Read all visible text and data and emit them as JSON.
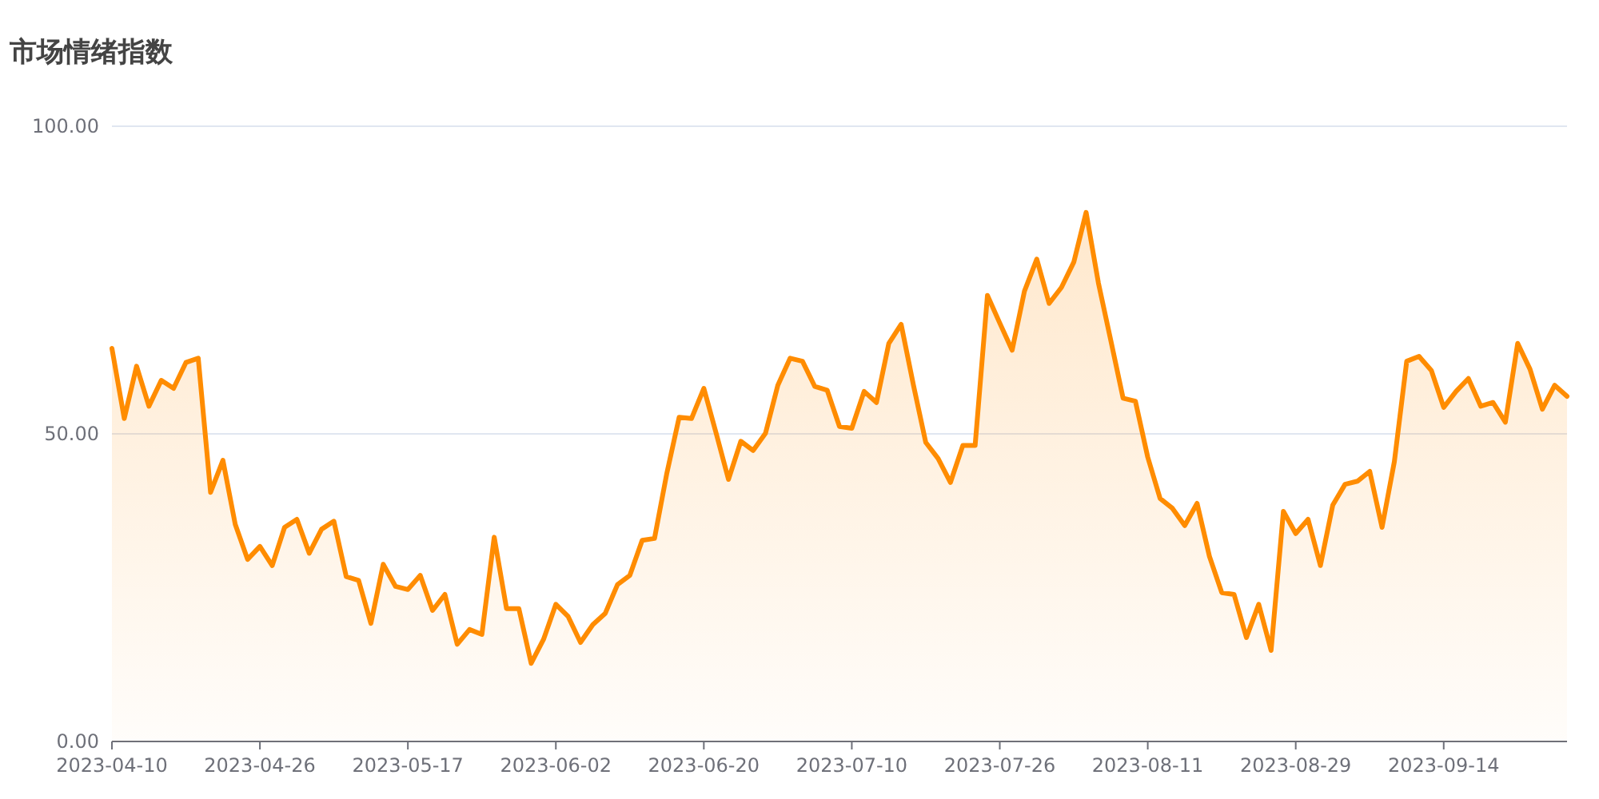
{
  "chart_data": {
    "type": "area",
    "title": "市场情绪指数",
    "categories": [
      "2023-04-10",
      null,
      null,
      null,
      null,
      null,
      null,
      null,
      null,
      null,
      null,
      null,
      "2023-04-26",
      null,
      null,
      null,
      null,
      null,
      null,
      null,
      null,
      null,
      null,
      null,
      "2023-05-17",
      null,
      null,
      null,
      null,
      null,
      null,
      null,
      null,
      null,
      null,
      null,
      "2023-06-02",
      null,
      null,
      null,
      null,
      null,
      null,
      null,
      null,
      null,
      null,
      null,
      "2023-06-20",
      null,
      null,
      null,
      null,
      null,
      null,
      null,
      null,
      null,
      null,
      null,
      "2023-07-10",
      null,
      null,
      null,
      null,
      null,
      null,
      null,
      null,
      null,
      null,
      null,
      "2023-07-26",
      null,
      null,
      null,
      null,
      null,
      null,
      null,
      null,
      null,
      null,
      null,
      "2023-08-11",
      null,
      null,
      null,
      null,
      null,
      null,
      null,
      null,
      null,
      null,
      null,
      "2023-08-29",
      null,
      null,
      null,
      null,
      null,
      null,
      null,
      null,
      null,
      null,
      null,
      "2023-09-14",
      null,
      null,
      null,
      null,
      null,
      null,
      null,
      null,
      null,
      null
    ],
    "series": [
      {
        "color": "#ff8c00",
        "values": [
          63.9,
          52.5,
          61,
          54.5,
          58.7,
          57.4,
          61.6,
          62.3,
          40.5,
          45.7,
          35.3,
          29.6,
          31.7,
          28.6,
          34.8,
          36.1,
          30.6,
          34.5,
          35.8,
          26.8,
          26.2,
          19.2,
          28.8,
          25.2,
          24.7,
          27,
          21.3,
          23.9,
          15.8,
          18.2,
          17.4,
          33.2,
          21.6,
          21.6,
          12.7,
          16.6,
          22.3,
          20.3,
          16.1,
          19,
          20.8,
          25.5,
          27,
          32.7,
          33,
          43.6,
          52.7,
          52.5,
          57.4,
          50.1,
          42.6,
          48.8,
          47.3,
          50.1,
          57.9,
          62.3,
          61.8,
          57.7,
          57.1,
          51.2,
          50.9,
          56.9,
          55.1,
          64.7,
          67.8,
          57.9,
          48.6,
          46,
          42.1,
          48.1,
          48.1,
          72.5,
          68,
          63.6,
          73.2,
          78.4,
          71.2,
          73.8,
          77.9,
          86,
          74.5,
          65.2,
          55.8,
          55.3,
          46.2,
          39.5,
          37.9,
          35.1,
          38.7,
          30.1,
          24.2,
          23.9,
          16.9,
          22.3,
          14.8,
          37.4,
          33.8,
          36.1,
          28.6,
          38.4,
          41.8,
          42.3,
          43.9,
          34.8,
          45.5,
          61.8,
          62.6,
          60.3,
          54.3,
          56.9,
          59,
          54.5,
          55.1,
          51.9,
          64.7,
          60.5,
          54,
          57.9,
          56.1
        ]
      }
    ],
    "ylim": [
      0,
      100
    ],
    "yticks": [
      {
        "value": 0,
        "label": "0.00"
      },
      {
        "value": 50,
        "label": "50.00"
      },
      {
        "value": 100,
        "label": "100.00"
      }
    ],
    "grid": "y"
  }
}
